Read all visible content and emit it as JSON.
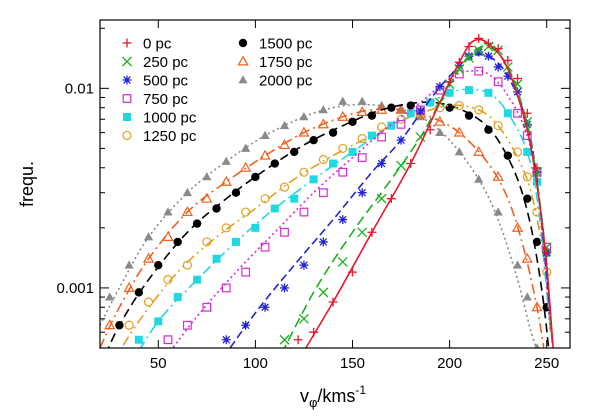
{
  "chart_data": {
    "type": "line",
    "xlabel": "v",
    "xlabel_sub": "φ",
    "xlabel_unit": "/kms",
    "xlabel_exp": "-1",
    "ylabel": "frequ.",
    "yscale": "log",
    "xlim": [
      20,
      262
    ],
    "ylim": [
      0.0005,
      0.022
    ],
    "xticks": [
      50,
      100,
      150,
      200,
      250
    ],
    "yticks": [
      {
        "value": 0.001,
        "label": "0.001"
      },
      {
        "value": 0.01,
        "label": "0.01"
      }
    ],
    "legend_position": "top-left",
    "series": [
      {
        "name": "0 pc",
        "color": "#e8182c",
        "marker": "plus",
        "dash": "",
        "line_x": [
          120,
          140,
          160,
          180,
          195,
          205,
          212,
          220,
          230,
          240,
          246,
          250,
          254
        ],
        "line_y": [
          0.0004,
          0.00085,
          0.0019,
          0.0042,
          0.0085,
          0.0135,
          0.0172,
          0.0168,
          0.0125,
          0.0062,
          0.0028,
          0.0013,
          0.0004
        ],
        "points_x": [
          122,
          130,
          140,
          150,
          160,
          170,
          180,
          190,
          200,
          205,
          210,
          215,
          220,
          225,
          230,
          235,
          240,
          245,
          250
        ],
        "points_y": [
          0.00055,
          0.0006,
          0.00085,
          0.0012,
          0.0019,
          0.0028,
          0.0042,
          0.0062,
          0.0108,
          0.0135,
          0.0162,
          0.0178,
          0.0168,
          0.0158,
          0.0138,
          0.0112,
          0.0075,
          0.004,
          0.0015
        ]
      },
      {
        "name": "250 pc",
        "color": "#1fae1f",
        "marker": "x",
        "dash": "10,5",
        "line_x": [
          110,
          130,
          150,
          170,
          185,
          195,
          205,
          212,
          220,
          230,
          240,
          246,
          250,
          253
        ],
        "line_y": [
          0.0004,
          0.00095,
          0.0019,
          0.0035,
          0.0057,
          0.0085,
          0.0125,
          0.0152,
          0.0162,
          0.0128,
          0.0066,
          0.0029,
          0.0013,
          0.0005
        ],
        "points_x": [
          115,
          125,
          135,
          145,
          155,
          165,
          175,
          185,
          195,
          200,
          205,
          210,
          215,
          220,
          225,
          230,
          235,
          240,
          245,
          250
        ],
        "points_y": [
          0.00055,
          0.0007,
          0.00095,
          0.00135,
          0.0019,
          0.0028,
          0.0041,
          0.0057,
          0.0085,
          0.0105,
          0.0125,
          0.0142,
          0.0155,
          0.0162,
          0.0155,
          0.0128,
          0.0105,
          0.0068,
          0.0038,
          0.0016
        ]
      },
      {
        "name": "500 pc",
        "color": "#2323d4",
        "marker": "star",
        "dash": "8,4",
        "line_x": [
          80,
          100,
          120,
          140,
          160,
          175,
          190,
          200,
          210,
          220,
          230,
          240,
          246,
          252
        ],
        "line_y": [
          0.0004,
          0.00075,
          0.0013,
          0.0022,
          0.0038,
          0.0055,
          0.0088,
          0.0115,
          0.0142,
          0.0145,
          0.0115,
          0.0066,
          0.0029,
          0.0007
        ],
        "points_x": [
          85,
          95,
          105,
          115,
          125,
          135,
          145,
          155,
          165,
          175,
          185,
          195,
          205,
          210,
          215,
          220,
          225,
          230,
          235,
          240,
          245,
          250
        ],
        "points_y": [
          0.00055,
          0.00065,
          0.0008,
          0.001,
          0.0013,
          0.0017,
          0.0022,
          0.003,
          0.0042,
          0.0055,
          0.0077,
          0.0102,
          0.013,
          0.0145,
          0.0152,
          0.0145,
          0.0128,
          0.0115,
          0.0096,
          0.0066,
          0.0038,
          0.0015
        ]
      },
      {
        "name": "750 pc",
        "color": "#d62bd6",
        "marker": "open-square",
        "dash": "2,3",
        "line_x": [
          50,
          70,
          90,
          110,
          130,
          150,
          170,
          185,
          200,
          210,
          220,
          230,
          240,
          246,
          252
        ],
        "line_y": [
          0.0004,
          0.00072,
          0.0012,
          0.0019,
          0.003,
          0.0045,
          0.0066,
          0.0085,
          0.0112,
          0.0122,
          0.0118,
          0.0092,
          0.0058,
          0.0028,
          0.0006
        ],
        "points_x": [
          55,
          65,
          75,
          85,
          95,
          105,
          115,
          125,
          135,
          145,
          155,
          165,
          175,
          185,
          195,
          205,
          215,
          225,
          235,
          240,
          245,
          250
        ],
        "points_y": [
          0.00055,
          0.00065,
          0.0008,
          0.001,
          0.0012,
          0.0016,
          0.0019,
          0.0024,
          0.003,
          0.0038,
          0.0045,
          0.0057,
          0.0066,
          0.0078,
          0.0098,
          0.0118,
          0.0122,
          0.0108,
          0.0075,
          0.0058,
          0.0038,
          0.0016
        ]
      },
      {
        "name": "1000 pc",
        "color": "#1fd8e0",
        "marker": "filled-square",
        "dash": "10,4,2,4",
        "line_x": [
          35,
          50,
          70,
          90,
          110,
          130,
          150,
          170,
          190,
          205,
          220,
          230,
          240,
          246,
          252
        ],
        "line_y": [
          0.0004,
          0.00068,
          0.0011,
          0.0017,
          0.0025,
          0.0035,
          0.0048,
          0.0065,
          0.0085,
          0.0098,
          0.0095,
          0.0075,
          0.0048,
          0.0024,
          0.0006
        ],
        "points_x": [
          40,
          50,
          60,
          70,
          80,
          90,
          100,
          110,
          120,
          130,
          140,
          150,
          160,
          170,
          180,
          190,
          200,
          210,
          220,
          230,
          240,
          245,
          250
        ],
        "points_y": [
          0.00055,
          0.00068,
          0.0009,
          0.0011,
          0.0014,
          0.0017,
          0.002,
          0.0025,
          0.0028,
          0.0035,
          0.0042,
          0.0048,
          0.0058,
          0.0065,
          0.0075,
          0.0085,
          0.0095,
          0.0098,
          0.0095,
          0.0075,
          0.0048,
          0.0034,
          0.0015
        ]
      },
      {
        "name": "1250 pc",
        "color": "#e0a020",
        "marker": "open-circle",
        "dash": "10,4,2,4,2,4",
        "line_x": [
          25,
          40,
          60,
          80,
          100,
          120,
          140,
          160,
          180,
          200,
          215,
          225,
          235,
          242,
          248,
          252
        ],
        "line_y": [
          0.0004,
          0.00068,
          0.0012,
          0.0018,
          0.0025,
          0.0035,
          0.0046,
          0.0058,
          0.0072,
          0.0082,
          0.0078,
          0.0065,
          0.0045,
          0.003,
          0.0015,
          0.0006
        ],
        "points_x": [
          35,
          45,
          55,
          65,
          75,
          85,
          95,
          105,
          115,
          125,
          135,
          145,
          155,
          165,
          175,
          185,
          195,
          205,
          215,
          225,
          235,
          240,
          245,
          250
        ],
        "points_y": [
          0.00065,
          0.00085,
          0.0011,
          0.0013,
          0.0017,
          0.002,
          0.0024,
          0.0028,
          0.0032,
          0.0038,
          0.0044,
          0.005,
          0.0056,
          0.0064,
          0.007,
          0.0076,
          0.008,
          0.0082,
          0.0078,
          0.0065,
          0.0048,
          0.0036,
          0.0024,
          0.0012
        ]
      },
      {
        "name": "1500 pc",
        "color": "#000000",
        "marker": "filled-circle",
        "dash": "9,5",
        "line_x": [
          20,
          30,
          45,
          65,
          85,
          105,
          125,
          145,
          165,
          185,
          200,
          215,
          225,
          235,
          242,
          248,
          252
        ],
        "line_y": [
          0.0004,
          0.00065,
          0.0011,
          0.0019,
          0.0028,
          0.0039,
          0.0052,
          0.0065,
          0.0078,
          0.0085,
          0.0082,
          0.007,
          0.0055,
          0.0035,
          0.002,
          0.0009,
          0.0004
        ],
        "points_x": [
          30,
          40,
          50,
          60,
          70,
          80,
          90,
          100,
          110,
          120,
          130,
          140,
          150,
          160,
          170,
          180,
          190,
          200,
          210,
          220,
          230,
          240,
          245,
          250
        ],
        "points_y": [
          0.00065,
          0.00095,
          0.0013,
          0.0017,
          0.0021,
          0.0025,
          0.003,
          0.0036,
          0.0042,
          0.0048,
          0.0055,
          0.006,
          0.0068,
          0.0073,
          0.008,
          0.0082,
          0.0085,
          0.008,
          0.0073,
          0.0062,
          0.0046,
          0.0028,
          0.0017,
          0.0008
        ]
      },
      {
        "name": "1750 pc",
        "color": "#f06020",
        "marker": "open-triangle",
        "dash": "10,4,2,4",
        "line_x": [
          20,
          30,
          45,
          65,
          85,
          105,
          125,
          145,
          160,
          175,
          190,
          205,
          220,
          230,
          238,
          245,
          250
        ],
        "line_y": [
          0.0005,
          0.0008,
          0.0014,
          0.0024,
          0.0034,
          0.0046,
          0.006,
          0.0072,
          0.0078,
          0.0078,
          0.0072,
          0.006,
          0.0042,
          0.0028,
          0.0016,
          0.0008,
          0.0004
        ],
        "points_x": [
          25,
          35,
          45,
          55,
          65,
          75,
          85,
          95,
          105,
          115,
          125,
          135,
          145,
          155,
          165,
          175,
          185,
          195,
          205,
          215,
          225,
          235,
          240,
          245
        ],
        "points_y": [
          0.00065,
          0.001,
          0.0014,
          0.0018,
          0.0024,
          0.0028,
          0.0034,
          0.004,
          0.0046,
          0.0052,
          0.006,
          0.0066,
          0.0072,
          0.0076,
          0.0078,
          0.0078,
          0.0074,
          0.0068,
          0.006,
          0.0048,
          0.0036,
          0.002,
          0.0014,
          0.0008
        ]
      },
      {
        "name": "2000 pc",
        "color": "#8a8a8a",
        "marker": "filled-triangle",
        "dash": "2,3",
        "line_x": [
          20,
          30,
          45,
          65,
          85,
          105,
          125,
          140,
          155,
          170,
          185,
          200,
          215,
          225,
          235,
          242,
          248
        ],
        "line_y": [
          0.00065,
          0.001,
          0.0018,
          0.003,
          0.0043,
          0.0058,
          0.0072,
          0.008,
          0.0083,
          0.008,
          0.0072,
          0.0055,
          0.0035,
          0.0022,
          0.0011,
          0.0006,
          0.0004
        ],
        "points_x": [
          25,
          35,
          45,
          55,
          65,
          75,
          85,
          95,
          105,
          115,
          125,
          135,
          145,
          155,
          165,
          175,
          185,
          195,
          205,
          215,
          225,
          235,
          240,
          245
        ],
        "points_y": [
          0.0009,
          0.0013,
          0.0018,
          0.0024,
          0.003,
          0.0036,
          0.0043,
          0.005,
          0.0058,
          0.0065,
          0.0072,
          0.0078,
          0.0086,
          0.0086,
          0.0082,
          0.0078,
          0.0072,
          0.006,
          0.0048,
          0.0035,
          0.0024,
          0.0013,
          0.0009,
          0.0005
        ]
      }
    ]
  }
}
